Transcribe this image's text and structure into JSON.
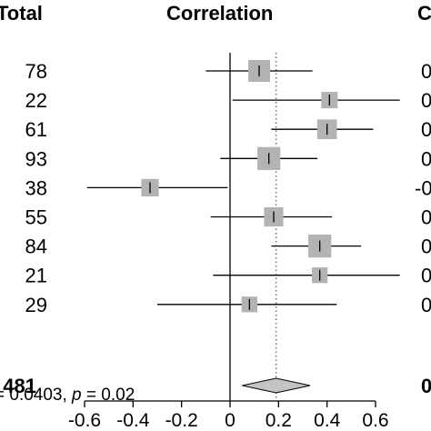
{
  "headers": {
    "total": "Total",
    "correlation": "Correlation",
    "right_clipped": "C"
  },
  "chart_data": {
    "type": "forest",
    "title": "",
    "xlim": [
      -0.6,
      0.6
    ],
    "x_ticks": [
      -0.6,
      -0.4,
      -0.2,
      0,
      0.2,
      0.4,
      0.6
    ],
    "x_tick_labels": [
      "-0.6",
      "-0.4",
      "-0.2",
      "0",
      "0.2",
      "0.4",
      "0.6"
    ],
    "studies": [
      {
        "total": "78",
        "cor": 0.12,
        "lower": -0.1,
        "upper": 0.34,
        "weight": 1.0,
        "right_text": "0"
      },
      {
        "total": "22",
        "cor": 0.41,
        "lower": 0.01,
        "upper": 0.7,
        "weight": 0.75,
        "right_text": "0"
      },
      {
        "total": "61",
        "cor": 0.4,
        "lower": 0.17,
        "upper": 0.59,
        "weight": 0.9,
        "right_text": "0"
      },
      {
        "total": "93",
        "cor": 0.16,
        "lower": -0.04,
        "upper": 0.36,
        "weight": 1.05,
        "right_text": "0"
      },
      {
        "total": "38",
        "cor": -0.33,
        "lower": -0.59,
        "upper": -0.01,
        "weight": 0.8,
        "right_text": "-0"
      },
      {
        "total": "55",
        "cor": 0.18,
        "lower": -0.08,
        "upper": 0.42,
        "weight": 0.88,
        "right_text": "0"
      },
      {
        "total": "84",
        "cor": 0.37,
        "lower": 0.17,
        "upper": 0.54,
        "weight": 1.05,
        "right_text": "0"
      },
      {
        "total": "21",
        "cor": 0.37,
        "lower": -0.07,
        "upper": 0.7,
        "weight": 0.72,
        "right_text": "0"
      },
      {
        "total": "29",
        "cor": 0.08,
        "lower": -0.3,
        "upper": 0.44,
        "weight": 0.72,
        "right_text": "0"
      }
    ],
    "summary": {
      "total": "481",
      "cor": 0.19,
      "lower": 0.05,
      "upper": 0.33,
      "right_text": "0"
    },
    "reference_line": 0,
    "summary_line": 0.19,
    "heterogeneity_text": "= 0.0403, ",
    "heterogeneity_p_label": "p",
    "heterogeneity_p_value": " = 0.02",
    "colors": {
      "box": "#b3b3b3",
      "diamond": "#c4c4c4",
      "line": "#000000",
      "dotted": "#777777"
    }
  }
}
